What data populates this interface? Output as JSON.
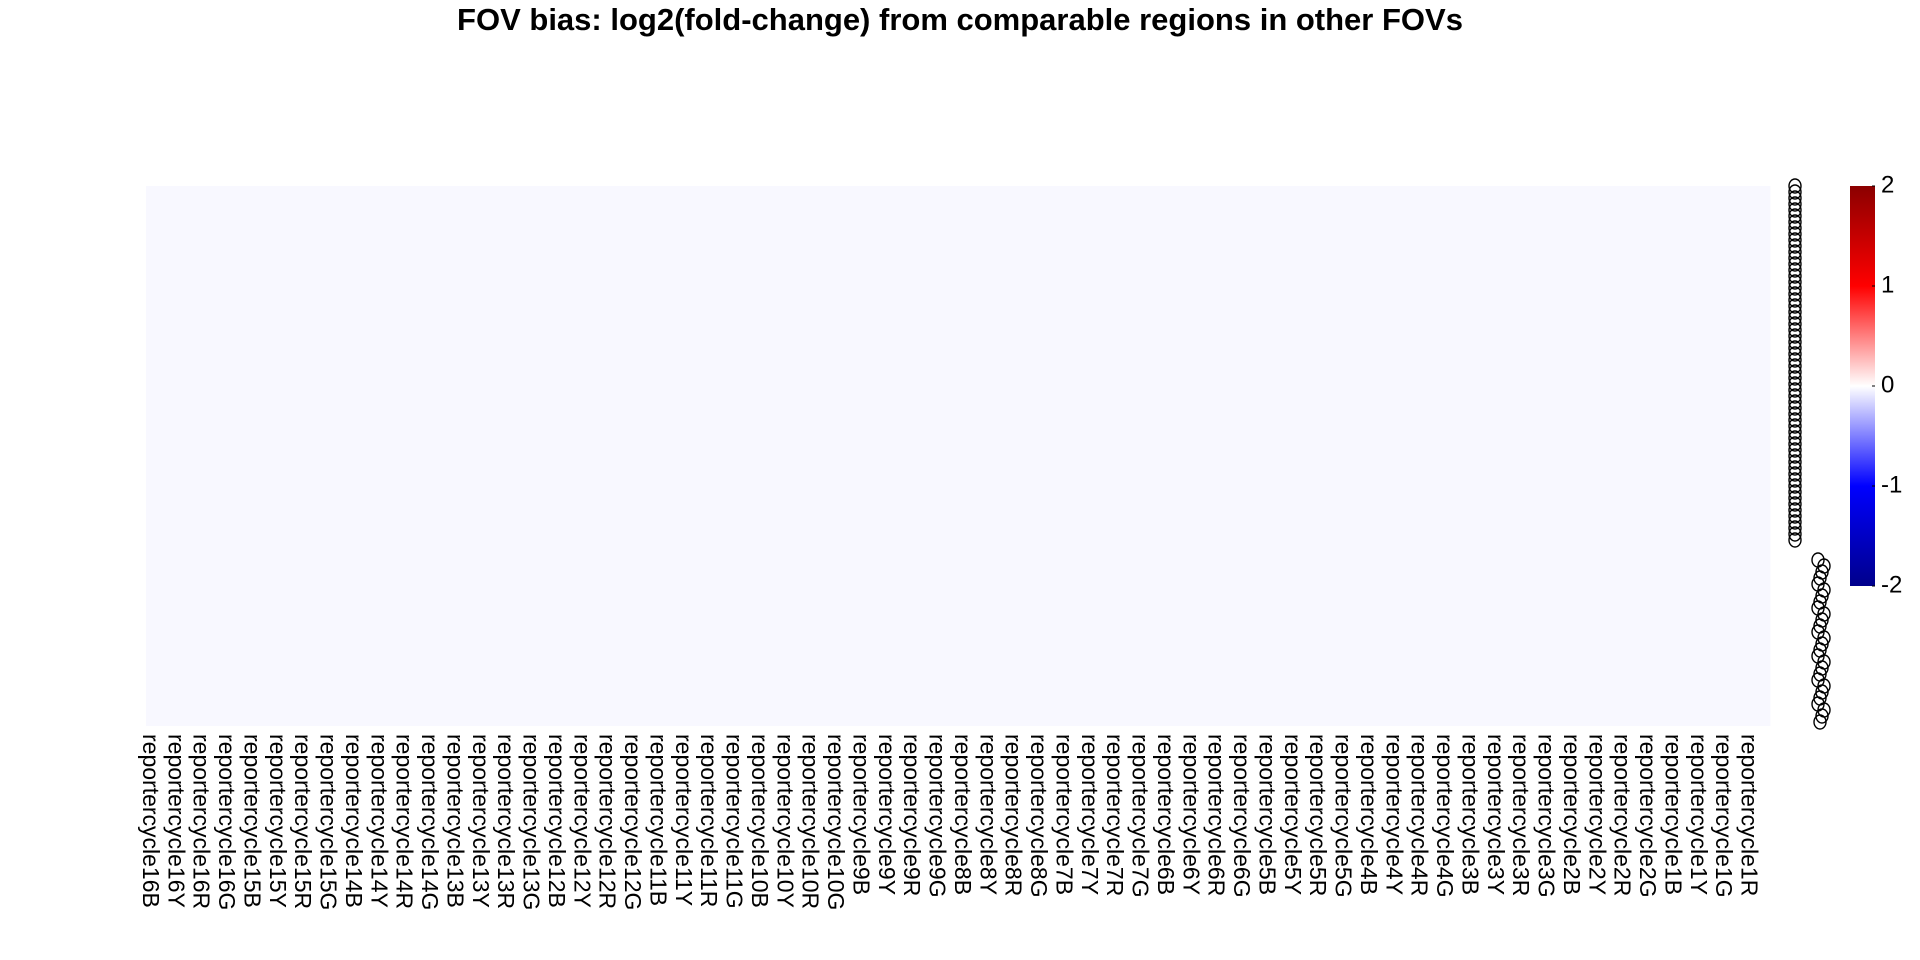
{
  "chart_data": {
    "type": "heatmap",
    "title": "FOV bias: log2(fold-change) from comparable regions in other FOVs",
    "columns": [
      "reportercycle16B",
      "reportercycle16Y",
      "reportercycle16R",
      "reportercycle16G",
      "reportercycle15B",
      "reportercycle15Y",
      "reportercycle15R",
      "reportercycle15G",
      "reportercycle14B",
      "reportercycle14Y",
      "reportercycle14R",
      "reportercycle14G",
      "reportercycle13B",
      "reportercycle13Y",
      "reportercycle13R",
      "reportercycle13G",
      "reportercycle12B",
      "reportercycle12Y",
      "reportercycle12R",
      "reportercycle12G",
      "reportercycle11B",
      "reportercycle11Y",
      "reportercycle11R",
      "reportercycle11G",
      "reportercycle10B",
      "reportercycle10Y",
      "reportercycle10R",
      "reportercycle10G",
      "reportercycle9B",
      "reportercycle9Y",
      "reportercycle9R",
      "reportercycle9G",
      "reportercycle8B",
      "reportercycle8Y",
      "reportercycle8R",
      "reportercycle8G",
      "reportercycle7B",
      "reportercycle7Y",
      "reportercycle7R",
      "reportercycle7G",
      "reportercycle6B",
      "reportercycle6Y",
      "reportercycle6R",
      "reportercycle6G",
      "reportercycle5B",
      "reportercycle5Y",
      "reportercycle5R",
      "reportercycle5G",
      "reportercycle4B",
      "reportercycle4Y",
      "reportercycle4R",
      "reportercycle4G",
      "reportercycle3B",
      "reportercycle3Y",
      "reportercycle3R",
      "reportercycle3G",
      "reportercycle2B",
      "reportercycle2Y",
      "reportercycle2R",
      "reportercycle2G",
      "reportercycle1B",
      "reportercycle1Y",
      "reportercycle1G",
      "reportercycle1R"
    ],
    "value": 0,
    "fill_color": "#f8f8ff",
    "colorbar": {
      "ticks": [
        2,
        1,
        0,
        -1,
        -2
      ],
      "tick_labels": [
        "2",
        "1",
        "0",
        "-1",
        "-2"
      ],
      "colors": [
        "#8b0000",
        "#ff0000",
        "#ffffff",
        "#0000ff",
        "#00008b"
      ]
    }
  }
}
